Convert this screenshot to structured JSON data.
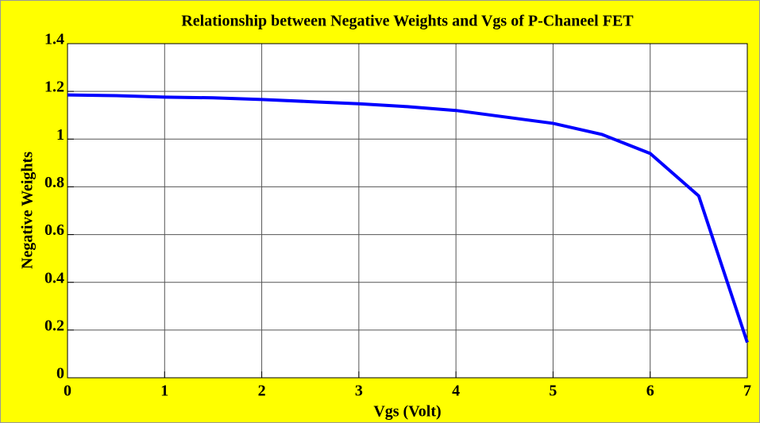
{
  "chart_data": {
    "type": "line",
    "title": "Relationship between Negative Weights and Vgs of P-Chaneel FET",
    "x_label": "Vgs (Volt)",
    "y_label": "Negative Weights",
    "x": [
      0,
      0.5,
      1,
      1.5,
      2,
      2.5,
      3,
      3.5,
      4,
      4.5,
      5,
      5.5,
      6,
      6.5,
      7
    ],
    "series": [
      {
        "name": "Negative Weights",
        "color": "#0000ff",
        "values": [
          1.185,
          1.182,
          1.176,
          1.173,
          1.166,
          1.157,
          1.148,
          1.136,
          1.12,
          1.093,
          1.066,
          1.02,
          0.94,
          0.762,
          0.148
        ]
      }
    ],
    "xlim": [
      0,
      7
    ],
    "xticks": [
      0,
      1,
      2,
      3,
      4,
      5,
      6,
      7
    ],
    "ylim": [
      0,
      1.4
    ],
    "yticks": [
      0,
      0.2,
      0.4,
      0.6,
      0.8,
      1,
      1.2,
      1.4
    ],
    "grid": true
  }
}
